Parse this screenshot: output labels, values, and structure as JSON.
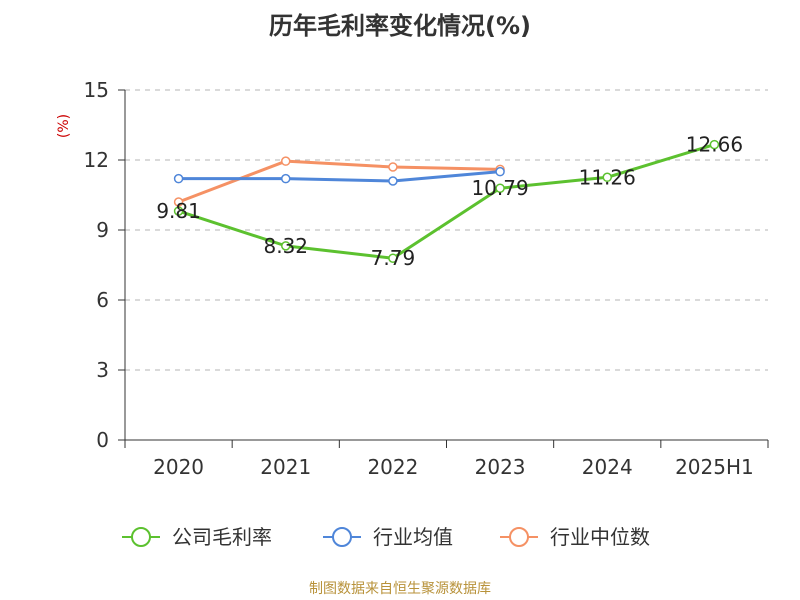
{
  "chart_data": {
    "type": "line",
    "title": "历年毛利率变化情况(%)",
    "ylabel": "(%)",
    "xlabel": "",
    "categories": [
      "2020",
      "2021",
      "2022",
      "2023",
      "2024",
      "2025H1"
    ],
    "ylim": [
      0,
      15
    ],
    "yticks": [
      0,
      3,
      6,
      9,
      12,
      15
    ],
    "grid": true,
    "legend_position": "bottom",
    "series": [
      {
        "name": "公司毛利率",
        "color": "#5cc12f",
        "values": [
          9.81,
          8.32,
          7.79,
          10.79,
          11.26,
          12.66
        ],
        "labels": [
          "9.81",
          "8.32",
          "7.79",
          "10.79",
          "11.26",
          "12.66"
        ]
      },
      {
        "name": "行业均值",
        "color": "#4f86d9",
        "values": [
          11.2,
          11.2,
          11.1,
          11.5,
          null,
          null
        ]
      },
      {
        "name": "行业中位数",
        "color": "#f59164",
        "values": [
          10.2,
          11.95,
          11.7,
          11.6,
          null,
          null
        ]
      }
    ]
  },
  "source": "制图数据来自恒生聚源数据库"
}
